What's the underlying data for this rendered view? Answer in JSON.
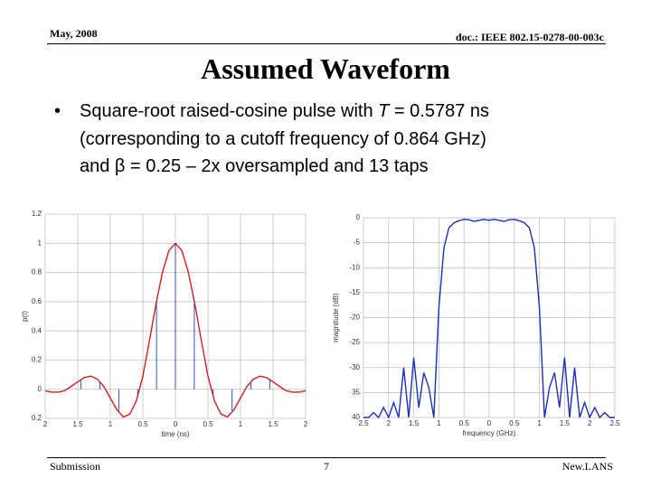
{
  "header": {
    "date": "May, 2008",
    "doc": "doc.: IEEE 802.15-0278-00-003c"
  },
  "title": "Assumed Waveform",
  "bullet": {
    "marker": "•",
    "lines": [
      [
        "Square-root raised-cosine pulse with ",
        "T",
        " = 0.5787 ns"
      ],
      [
        "(corresponding to a cutoff frequency of 0.864 GHz)"
      ],
      [
        "and β = 0.25 – 2x oversampled and 13 taps"
      ]
    ]
  },
  "footer": {
    "left": "Submission",
    "page": "7",
    "right": "New.LANS"
  },
  "chart_data": [
    {
      "type": "line",
      "xlabel": "time (ns)",
      "ylabel": "p(t)",
      "xlim": [
        -2,
        2
      ],
      "ylim": [
        -0.2,
        1.2
      ],
      "grid": true,
      "xticks": [
        {
          "value": -2,
          "label": "2"
        },
        {
          "value": -1.5,
          "label": "1.5"
        },
        {
          "value": -1,
          "label": "1"
        },
        {
          "value": -0.5,
          "label": "0.5"
        },
        0,
        0.5,
        1,
        1.5,
        2
      ],
      "yticks": [
        {
          "value": -0.2,
          "label": "0.2"
        },
        0,
        0.2,
        0.4,
        0.6,
        0.8,
        1,
        1.2
      ],
      "series": [
        {
          "color": "#d02020",
          "style": "line",
          "x": [
            -2,
            -1.9,
            -1.8,
            -1.7,
            -1.6,
            -1.5,
            -1.4,
            -1.3,
            -1.2,
            -1.1,
            -1,
            -0.9,
            -0.8,
            -0.7,
            -0.6,
            -0.5,
            -0.4,
            -0.3,
            -0.2,
            -0.1,
            0,
            0.1,
            0.2,
            0.3,
            0.4,
            0.5,
            0.6,
            0.7,
            0.8,
            0.9,
            1,
            1.1,
            1.2,
            1.3,
            1.4,
            1.5,
            1.6,
            1.7,
            1.8,
            1.9,
            2
          ],
          "values": [
            -0.01,
            -0.02,
            -0.02,
            -0.01,
            0.02,
            0.05,
            0.08,
            0.09,
            0.07,
            0.02,
            -0.06,
            -0.14,
            -0.19,
            -0.17,
            -0.08,
            0.09,
            0.33,
            0.58,
            0.8,
            0.95,
            1,
            0.95,
            0.8,
            0.58,
            0.33,
            0.09,
            -0.08,
            -0.17,
            -0.19,
            -0.14,
            -0.06,
            0.02,
            0.07,
            0.09,
            0.08,
            0.05,
            0.02,
            -0.01,
            -0.02,
            -0.02,
            -0.01
          ]
        },
        {
          "color": "#3050c0",
          "style": "stem",
          "x": [
            -1.74,
            -1.45,
            -1.16,
            -0.87,
            -0.58,
            -0.29,
            0,
            0.29,
            0.58,
            0.87,
            1.16,
            1.45,
            1.74
          ],
          "values": [
            0,
            0.07,
            0.05,
            -0.16,
            -0.05,
            0.6,
            1,
            0.6,
            -0.05,
            -0.16,
            0.05,
            0.07,
            0
          ]
        }
      ]
    },
    {
      "type": "line",
      "xlabel": "frequency (GHz)",
      "ylabel": "magnitude (dB)",
      "xlim": [
        -2.5,
        2.5
      ],
      "ylim": [
        -40,
        0
      ],
      "grid": true,
      "xticks": [
        {
          "value": -2.5,
          "label": "2.5"
        },
        {
          "value": -2,
          "label": "2"
        },
        {
          "value": -1.5,
          "label": "1.5"
        },
        {
          "value": -1,
          "label": "1"
        },
        {
          "value": -0.5,
          "label": "0.5"
        },
        0,
        0.5,
        1,
        1.5,
        2,
        2.5
      ],
      "yticks": [
        {
          "value": -40,
          "label": "40"
        },
        {
          "value": -35,
          "label": "35"
        },
        -30,
        -25,
        -20,
        -15,
        -10,
        -5,
        0
      ],
      "series": [
        {
          "color": "#1c2fb8",
          "style": "line",
          "x": [
            -2.5,
            -2.4,
            -2.3,
            -2.2,
            -2.1,
            -2,
            -1.9,
            -1.8,
            -1.7,
            -1.6,
            -1.5,
            -1.4,
            -1.3,
            -1.2,
            -1.1,
            -1,
            -0.9,
            -0.8,
            -0.7,
            -0.6,
            -0.5,
            -0.4,
            -0.3,
            -0.2,
            -0.1,
            0,
            0.1,
            0.2,
            0.3,
            0.4,
            0.5,
            0.6,
            0.7,
            0.8,
            0.9,
            1,
            1.1,
            1.2,
            1.3,
            1.4,
            1.5,
            1.6,
            1.7,
            1.8,
            1.9,
            2,
            2.1,
            2.2,
            2.3,
            2.4,
            2.5
          ],
          "values": [
            -40,
            -40,
            -39,
            -40,
            -38,
            -40,
            -37,
            -40,
            -30,
            -40,
            -28,
            -38,
            -31,
            -34,
            -40,
            -18,
            -6,
            -2,
            -1,
            -0.6,
            -0.3,
            -0.4,
            -0.7,
            -0.5,
            -0.3,
            -0.5,
            -0.3,
            -0.5,
            -0.7,
            -0.4,
            -0.3,
            -0.6,
            -1,
            -2,
            -6,
            -18,
            -40,
            -34,
            -31,
            -38,
            -28,
            -40,
            -30,
            -40,
            -37,
            -40,
            -38,
            -40,
            -39,
            -40,
            -40
          ]
        }
      ]
    }
  ]
}
